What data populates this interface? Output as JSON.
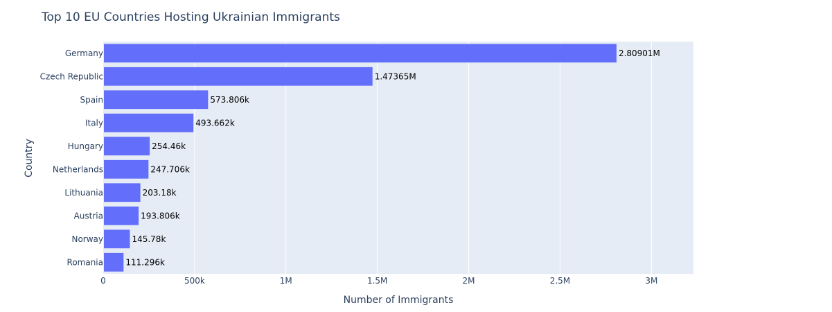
{
  "chart_data": {
    "type": "bar",
    "orientation": "horizontal",
    "title": "Top 10 EU Countries Hosting Ukrainian Immigrants",
    "xlabel": "Number of Immigrants",
    "ylabel": "Country",
    "xlim": [
      0,
      3230000
    ],
    "xticks": [
      {
        "value": 0,
        "label": "0"
      },
      {
        "value": 500000,
        "label": "500k"
      },
      {
        "value": 1000000,
        "label": "1M"
      },
      {
        "value": 1500000,
        "label": "1.5M"
      },
      {
        "value": 2000000,
        "label": "2M"
      },
      {
        "value": 2500000,
        "label": "2.5M"
      },
      {
        "value": 3000000,
        "label": "3M"
      }
    ],
    "grid": true,
    "categories": [
      "Germany",
      "Czech Republic",
      "Spain",
      "Italy",
      "Hungary",
      "Netherlands",
      "Lithuania",
      "Austria",
      "Norway",
      "Romania"
    ],
    "values": [
      2809010,
      1473650,
      573806,
      493662,
      254460,
      247706,
      203180,
      193806,
      145780,
      111296
    ],
    "data_labels": [
      "2.80901M",
      "1.47365M",
      "573.806k",
      "493.662k",
      "254.46k",
      "247.706k",
      "203.18k",
      "193.806k",
      "145.78k",
      "111.296k"
    ],
    "colors": {
      "bar": "#636efa",
      "plot_bg": "#e5ecf6",
      "grid": "#ffffff",
      "text": "#2a3f5f",
      "label": "#000000"
    }
  }
}
